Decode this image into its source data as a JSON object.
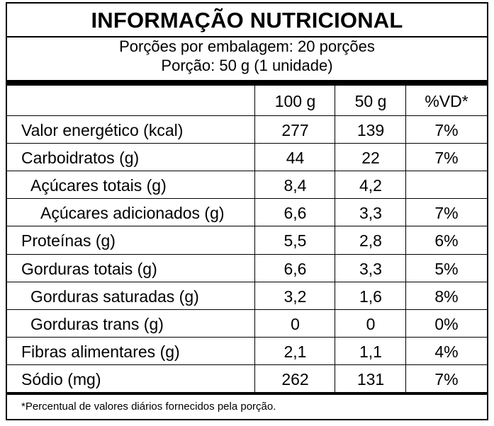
{
  "title": "INFORMAÇÃO NUTRICIONAL",
  "servings_per_package": "Porções por embalagem: 20 porções",
  "serving_size": "Porção: 50 g (1 unidade)",
  "columns": [
    "100 g",
    "50 g",
    "%VD*"
  ],
  "rows": [
    {
      "name": "Valor energético (kcal)",
      "per100": "277",
      "per50": "139",
      "vd": "7%",
      "indent": 0
    },
    {
      "name": "Carboidratos (g)",
      "per100": "44",
      "per50": "22",
      "vd": "7%",
      "indent": 0
    },
    {
      "name": "Açúcares totais (g)",
      "per100": "8,4",
      "per50": "4,2",
      "vd": "",
      "indent": 1
    },
    {
      "name": "Açúcares adicionados (g)",
      "per100": "6,6",
      "per50": "3,3",
      "vd": "7%",
      "indent": 2
    },
    {
      "name": "Proteínas (g)",
      "per100": "5,5",
      "per50": "2,8",
      "vd": "6%",
      "indent": 0
    },
    {
      "name": "Gorduras totais (g)",
      "per100": "6,6",
      "per50": "3,3",
      "vd": "5%",
      "indent": 0
    },
    {
      "name": "Gorduras saturadas (g)",
      "per100": "3,2",
      "per50": "1,6",
      "vd": "8%",
      "indent": 1
    },
    {
      "name": "Gorduras trans (g)",
      "per100": "0",
      "per50": "0",
      "vd": "0%",
      "indent": 1
    },
    {
      "name": "Fibras alimentares (g)",
      "per100": "2,1",
      "per50": "1,1",
      "vd": "4%",
      "indent": 0
    },
    {
      "name": "Sódio (mg)",
      "per100": "262",
      "per50": "131",
      "vd": "7%",
      "indent": 0
    }
  ],
  "footnote": "*Percentual de valores diários fornecidos pela porção."
}
